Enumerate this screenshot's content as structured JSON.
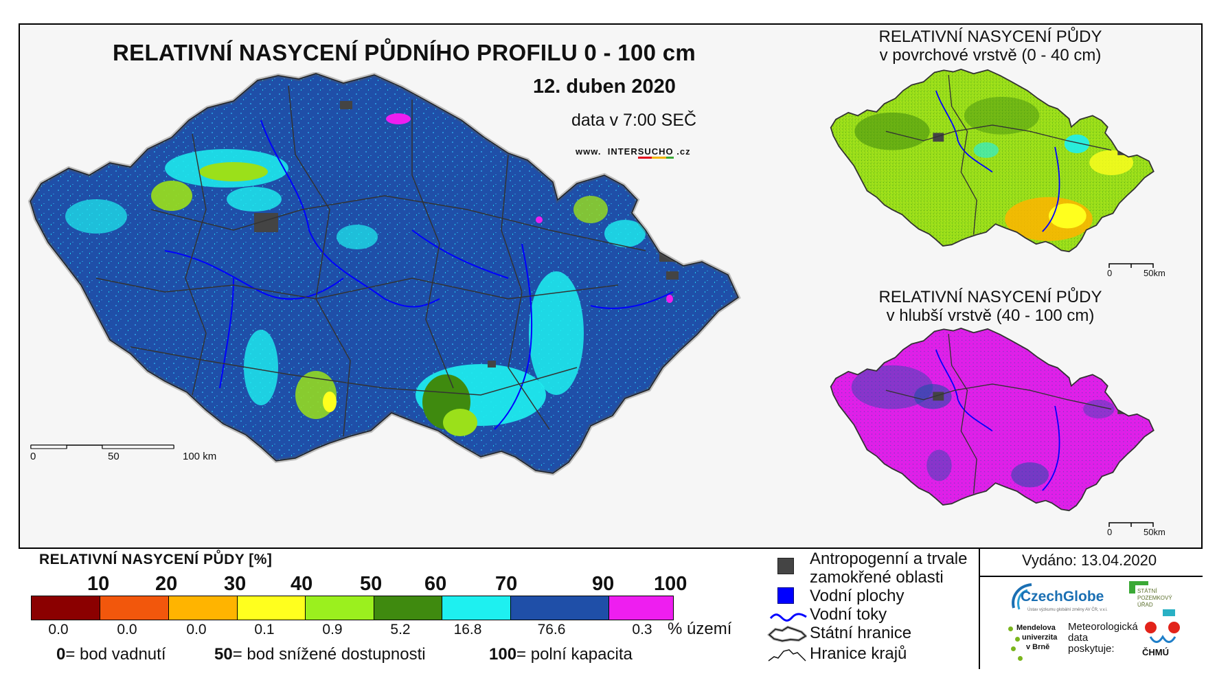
{
  "header": {
    "title": "RELATIVNÍ NASYCENÍ PŮDNÍHO PROFILU 0 - 100 cm",
    "date": "12. duben 2020",
    "data_time": "data v 7:00 SEČ",
    "url_prefix": "www.",
    "url_a": "INTER",
    "url_b": "SU",
    "url_c": "CH",
    "url_d": "O",
    "url_suffix": ".cz"
  },
  "main_map": {
    "scale_labels": [
      "0",
      "50",
      "100 km"
    ],
    "dominant_color": "#1f4fa8"
  },
  "top_map": {
    "title_line1": "RELATIVNÍ NASYCENÍ PŮDY",
    "title_line2": "v povrchové vrstvě (0 - 40 cm)",
    "scale_labels": [
      "0",
      "50km"
    ],
    "dominant_color": "#9be01a"
  },
  "bottom_map": {
    "title_line1": "RELATIVNÍ NASYCENÍ PŮDY",
    "title_line2": "v hlubší vrstvě (40 - 100 cm)",
    "scale_labels": [
      "0",
      "50km"
    ],
    "dominant_color": "#e21ee8"
  },
  "legend": {
    "title": "RELATIVNÍ NASYCENÍ PŮDY [%]",
    "thresholds": [
      "10",
      "20",
      "30",
      "40",
      "50",
      "60",
      "70",
      "90",
      "100"
    ],
    "bins": [
      {
        "color": "#8b0000",
        "pct": "0.0"
      },
      {
        "color": "#f2570c",
        "pct": "0.0"
      },
      {
        "color": "#ffb400",
        "pct": "0.0"
      },
      {
        "color": "#ffff1e",
        "pct": "0.1"
      },
      {
        "color": "#9bf01e",
        "pct": "0.9"
      },
      {
        "color": "#3f8a0f",
        "pct": "5.2"
      },
      {
        "color": "#1ef0f0",
        "pct": "16.8"
      },
      {
        "color": "#1f4fa8",
        "pct": "76.6"
      },
      {
        "color": "#ee1ef0",
        "pct": "0.3"
      }
    ],
    "unit": "% území",
    "def_0_num": "0",
    "def_0_text": "= bod vadnutí",
    "def_50_num": "50",
    "def_50_text": "= bod snížené dostupnosti",
    "def_100_num": "100",
    "def_100_text": "= polní kapacita"
  },
  "symbols": {
    "anthropogenic_1": "Antropogenní a trvale",
    "anthropogenic_2": "zamokřené oblasti",
    "water_bodies": "Vodní plochy",
    "rivers": "Vodní toky",
    "state_border": "Státní hranice",
    "region_border": "Hranice krajů",
    "colors": {
      "anthropogenic": "#444444",
      "water": "#0000ff",
      "river": "#0000ff"
    }
  },
  "issued": "Vydáno: 13.04.2020",
  "logos": {
    "czechglobe": "CzechGlobe",
    "czechglobe_sub": "Ústav výzkumu globální změny AV ČR, v.v.i.",
    "spu_1": "STÁTNÍ",
    "spu_2": "POZEMKOVÝ",
    "spu_3": "ÚŘAD",
    "mendel_1": "Mendelova",
    "mendel_2": "univerzita",
    "mendel_3": "v Brně",
    "meteo_1": "Meteorologická",
    "meteo_2": "data",
    "meteo_3": "poskytuje:",
    "chmu": "ČHMÚ"
  }
}
